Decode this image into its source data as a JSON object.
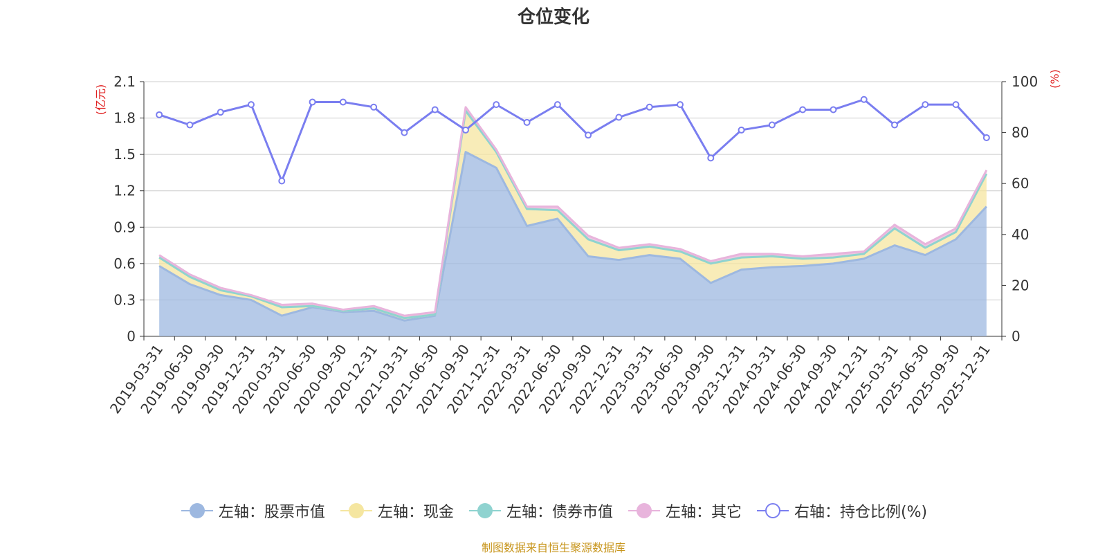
{
  "chart_data": {
    "type": "area",
    "title": "仓位变化",
    "left_axis_unit": "(亿元)",
    "right_axis_unit": "(%)",
    "ylim_left": [
      0,
      2.1
    ],
    "ylim_right": [
      0,
      100
    ],
    "left_ticks": [
      "0",
      "0.3",
      "0.6",
      "0.9",
      "1.2",
      "1.5",
      "1.8",
      "2.1"
    ],
    "right_ticks": [
      "0",
      "20",
      "40",
      "60",
      "80",
      "100"
    ],
    "grid": true,
    "legend_position": "bottom",
    "categories": [
      "2019-03-31",
      "2019-06-30",
      "2019-09-30",
      "2019-12-31",
      "2020-03-31",
      "2020-06-30",
      "2020-09-30",
      "2020-12-31",
      "2021-03-31",
      "2021-06-30",
      "2021-09-30",
      "2021-12-31",
      "2022-03-31",
      "2022-06-30",
      "2022-09-30",
      "2022-12-31",
      "2023-03-31",
      "2023-06-30",
      "2023-09-30",
      "2023-12-31",
      "2024-03-31",
      "2024-06-30",
      "2024-09-30",
      "2024-12-31",
      "2025-03-31",
      "2025-06-30",
      "2025-09-30",
      "2025-12-31"
    ],
    "series": [
      {
        "name": "左轴：股票市值",
        "axis": "left",
        "color": "#9db8e0",
        "values": [
          0.58,
          0.43,
          0.34,
          0.3,
          0.17,
          0.24,
          0.2,
          0.21,
          0.13,
          0.17,
          1.52,
          1.39,
          0.91,
          0.97,
          0.66,
          0.63,
          0.67,
          0.64,
          0.44,
          0.55,
          0.57,
          0.58,
          0.6,
          0.64,
          0.75,
          0.67,
          0.8,
          1.07
        ]
      },
      {
        "name": "左轴：现金",
        "axis": "left",
        "color": "#f5e6a0",
        "values": [
          0.07,
          0.06,
          0.04,
          0.03,
          0.07,
          0.01,
          0.01,
          0.02,
          0.02,
          0.01,
          0.34,
          0.13,
          0.14,
          0.07,
          0.14,
          0.08,
          0.07,
          0.06,
          0.16,
          0.1,
          0.09,
          0.06,
          0.05,
          0.04,
          0.14,
          0.06,
          0.06,
          0.27
        ]
      },
      {
        "name": "左轴：债券市值",
        "axis": "left",
        "color": "#8fd3d0",
        "values": [
          0,
          0,
          0,
          0,
          0,
          0,
          0,
          0,
          0,
          0,
          0,
          0,
          0,
          0,
          0,
          0,
          0,
          0,
          0,
          0,
          0,
          0,
          0,
          0,
          0,
          0,
          0,
          0
        ]
      },
      {
        "name": "左轴：其它",
        "axis": "left",
        "color": "#e8b4dc",
        "values": [
          0.02,
          0.02,
          0.02,
          0.01,
          0.02,
          0.02,
          0.01,
          0.02,
          0.02,
          0.02,
          0.03,
          0.02,
          0.02,
          0.03,
          0.03,
          0.02,
          0.02,
          0.02,
          0.02,
          0.03,
          0.02,
          0.02,
          0.03,
          0.02,
          0.03,
          0.03,
          0.03,
          0.03
        ]
      },
      {
        "name": "右轴：持仓比例(%)",
        "axis": "right",
        "color": "#7a7ef0",
        "values": [
          87,
          83,
          88,
          91,
          61,
          92,
          92,
          90,
          80,
          89,
          81,
          91,
          84,
          91,
          79,
          86,
          90,
          91,
          70,
          81,
          83,
          89,
          89,
          93,
          83,
          91,
          91,
          78
        ]
      }
    ]
  },
  "footer": {
    "source": "制图数据来自恒生聚源数据库"
  }
}
